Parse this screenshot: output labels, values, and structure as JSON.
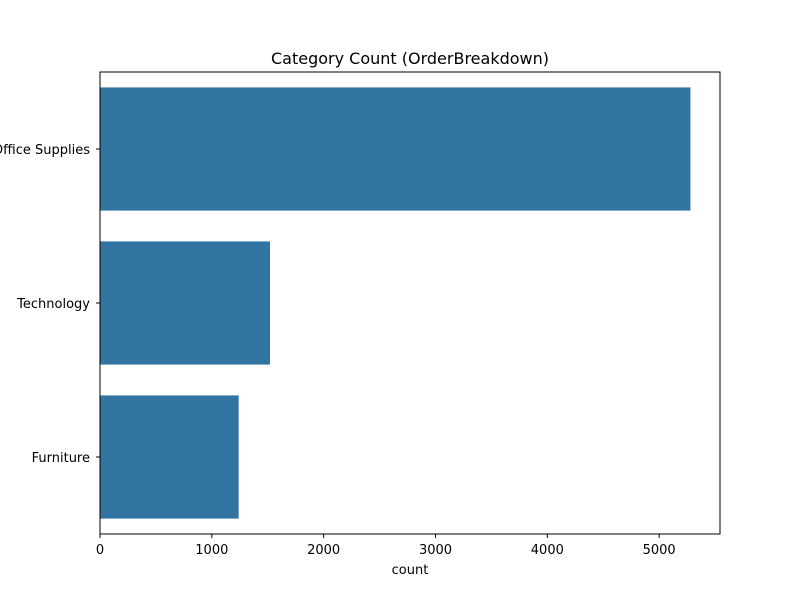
{
  "chart_data": {
    "type": "bar",
    "orientation": "horizontal",
    "title": "Category Count (OrderBreakdown)",
    "xlabel": "count",
    "ylabel": "",
    "categories": [
      "Office Supplies",
      "Technology",
      "Furniture"
    ],
    "values": [
      5280,
      1520,
      1240
    ],
    "xlim": [
      0,
      5544
    ],
    "xticks": [
      0,
      1000,
      2000,
      3000,
      4000,
      5000
    ],
    "grid": false,
    "legend": "none",
    "bar_color": "#3274a1"
  }
}
